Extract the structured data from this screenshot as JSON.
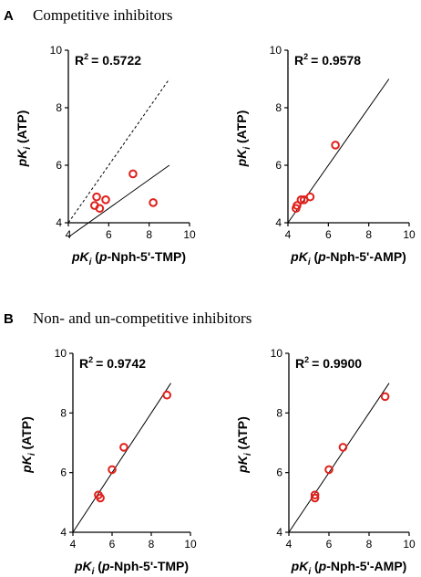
{
  "sections": [
    {
      "letter": "A",
      "title": "Competitive inhibitors"
    },
    {
      "letter": "B",
      "title": "Non- and un-competitive inhibitors"
    }
  ],
  "colors": {
    "points": "#e0201b",
    "lines": "#000000"
  },
  "chart_data": [
    {
      "type": "scatter",
      "section": "A",
      "r2_label": "R",
      "r2_value": "= 0.5722",
      "xlabel": {
        "pk": "pK",
        "sub": "i",
        "rest": " (",
        "italic": "p",
        "tail": "-Nph-5'-TMP)"
      },
      "ylabel": {
        "pk": "pK",
        "sub": "i",
        "rest": " (ATP)"
      },
      "xlim": [
        4,
        10
      ],
      "ylim": [
        4,
        10
      ],
      "xticks": [
        4,
        6,
        8,
        10
      ],
      "yticks": [
        4,
        6,
        8,
        10
      ],
      "points": [
        {
          "x": 5.4,
          "y": 4.9
        },
        {
          "x": 5.3,
          "y": 4.6
        },
        {
          "x": 5.55,
          "y": 4.5
        },
        {
          "x": 5.85,
          "y": 4.8
        },
        {
          "x": 7.2,
          "y": 5.7
        },
        {
          "x": 8.2,
          "y": 4.7
        }
      ],
      "fit_line": [
        {
          "x": 4,
          "y": 3.5
        },
        {
          "x": 9,
          "y": 6.0
        }
      ],
      "identity_line": {
        "style": "dashed",
        "points": [
          {
            "x": 4,
            "y": 4
          },
          {
            "x": 9,
            "y": 9
          }
        ]
      }
    },
    {
      "type": "scatter",
      "section": "A",
      "r2_label": "R",
      "r2_value": "= 0.9578",
      "xlabel": {
        "pk": "pK",
        "sub": "i",
        "rest": " (",
        "italic": "p",
        "tail": "-Nph-5'-AMP)"
      },
      "ylabel": {
        "pk": "pK",
        "sub": "i",
        "rest": " (ATP)"
      },
      "xlim": [
        4,
        10
      ],
      "ylim": [
        4,
        10
      ],
      "xticks": [
        4,
        6,
        8,
        10
      ],
      "yticks": [
        4,
        6,
        8,
        10
      ],
      "points": [
        {
          "x": 4.4,
          "y": 4.5
        },
        {
          "x": 4.45,
          "y": 4.6
        },
        {
          "x": 4.65,
          "y": 4.8
        },
        {
          "x": 4.8,
          "y": 4.8
        },
        {
          "x": 5.1,
          "y": 4.9
        },
        {
          "x": 6.35,
          "y": 6.7
        }
      ],
      "fit_line": [
        {
          "x": 4,
          "y": 4
        },
        {
          "x": 9,
          "y": 9
        }
      ]
    },
    {
      "type": "scatter",
      "section": "B",
      "r2_label": "R",
      "r2_value": "= 0.9742",
      "xlabel": {
        "pk": "pK",
        "sub": "i",
        "rest": " (",
        "italic": "p",
        "tail": "-Nph-5'-TMP)"
      },
      "ylabel": {
        "pk": "pK",
        "sub": "i",
        "rest": " (ATP)"
      },
      "xlim": [
        4,
        10
      ],
      "ylim": [
        4,
        10
      ],
      "xticks": [
        4,
        6,
        8,
        10
      ],
      "yticks": [
        4,
        6,
        8,
        10
      ],
      "points": [
        {
          "x": 5.3,
          "y": 5.25
        },
        {
          "x": 5.4,
          "y": 5.15
        },
        {
          "x": 6.0,
          "y": 6.1
        },
        {
          "x": 6.6,
          "y": 6.85
        },
        {
          "x": 8.8,
          "y": 8.6
        }
      ],
      "fit_line": [
        {
          "x": 4,
          "y": 4
        },
        {
          "x": 9,
          "y": 9
        }
      ]
    },
    {
      "type": "scatter",
      "section": "B",
      "r2_label": "R",
      "r2_value": "= 0.9900",
      "xlabel": {
        "pk": "pK",
        "sub": "i",
        "rest": " (",
        "italic": "p",
        "tail": "-Nph-5'-AMP)"
      },
      "ylabel": {
        "pk": "pK",
        "sub": "i",
        "rest": " (ATP)"
      },
      "xlim": [
        4,
        10
      ],
      "ylim": [
        4,
        10
      ],
      "xticks": [
        4,
        6,
        8,
        10
      ],
      "yticks": [
        4,
        6,
        8,
        10
      ],
      "points": [
        {
          "x": 5.3,
          "y": 5.25
        },
        {
          "x": 5.3,
          "y": 5.15
        },
        {
          "x": 6.0,
          "y": 6.1
        },
        {
          "x": 6.7,
          "y": 6.85
        },
        {
          "x": 8.8,
          "y": 8.55
        }
      ],
      "fit_line": [
        {
          "x": 4,
          "y": 4
        },
        {
          "x": 9,
          "y": 9
        }
      ]
    }
  ]
}
